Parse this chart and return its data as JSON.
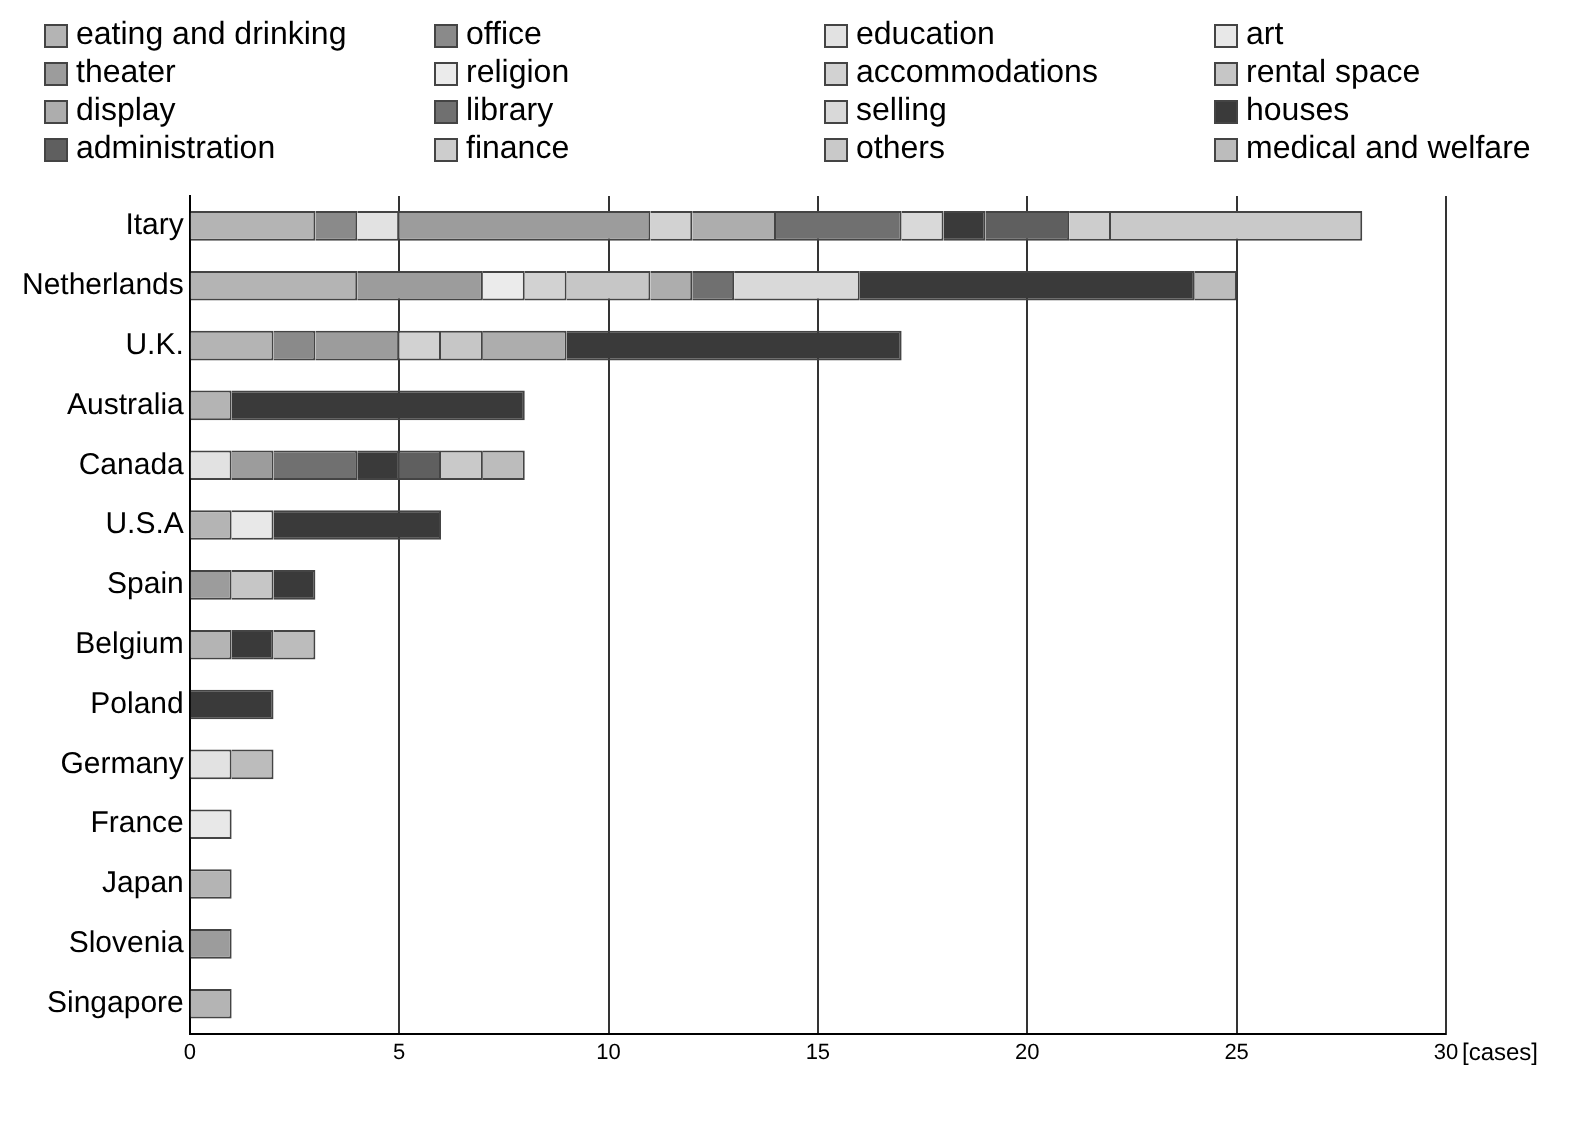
{
  "chart_data": {
    "type": "bar",
    "orientation": "horizontal",
    "stacked": true,
    "xlabel": "[cases]",
    "legend": "top",
    "grid": "x",
    "xlim": [
      0,
      30
    ],
    "xticks": [
      0,
      5,
      10,
      15,
      20,
      25,
      30
    ],
    "categories": [
      "Itary",
      "Netherlands",
      "U.K.",
      "Australia",
      "Canada",
      "U.S.A",
      "Spain",
      "Belgium",
      "Poland",
      "Germany",
      "France",
      "Japan",
      "Slovenia",
      "Singapore"
    ],
    "series": [
      {
        "name": "eating and drinking",
        "color": "#b4b4b4",
        "values": [
          3,
          4,
          2,
          1,
          null,
          1,
          null,
          1,
          null,
          null,
          null,
          1,
          null,
          1
        ]
      },
      {
        "name": "office",
        "color": "#8a8a8a",
        "values": [
          1,
          null,
          1,
          null,
          null,
          null,
          null,
          null,
          null,
          null,
          null,
          null,
          null,
          null
        ]
      },
      {
        "name": "education",
        "color": "#e2e2e2",
        "values": [
          1,
          null,
          null,
          null,
          1,
          null,
          null,
          null,
          null,
          1,
          null,
          null,
          null,
          null
        ]
      },
      {
        "name": "art",
        "color": "#e8e8e8",
        "values": [
          null,
          null,
          null,
          null,
          null,
          1,
          null,
          null,
          null,
          null,
          1,
          null,
          null,
          null
        ]
      },
      {
        "name": "theater",
        "color": "#9c9c9c",
        "values": [
          6,
          3,
          2,
          null,
          1,
          null,
          1,
          null,
          null,
          null,
          null,
          null,
          1,
          null
        ]
      },
      {
        "name": "religion",
        "color": "#ebebeb",
        "values": [
          null,
          1,
          null,
          null,
          null,
          null,
          null,
          null,
          null,
          null,
          null,
          null,
          null,
          null
        ]
      },
      {
        "name": "accommodations",
        "color": "#d2d2d2",
        "values": [
          1,
          1,
          1,
          null,
          null,
          null,
          null,
          null,
          null,
          null,
          null,
          null,
          null,
          null
        ]
      },
      {
        "name": "rental space",
        "color": "#c6c6c6",
        "values": [
          null,
          2,
          1,
          null,
          null,
          null,
          1,
          null,
          null,
          null,
          null,
          null,
          null,
          null
        ]
      },
      {
        "name": "display",
        "color": "#adadad",
        "values": [
          2,
          1,
          2,
          null,
          null,
          null,
          null,
          null,
          null,
          null,
          null,
          null,
          null,
          null
        ]
      },
      {
        "name": "library",
        "color": "#707070",
        "values": [
          3,
          1,
          null,
          null,
          2,
          null,
          null,
          null,
          null,
          null,
          null,
          null,
          null,
          null
        ]
      },
      {
        "name": "selling",
        "color": "#d9d9d9",
        "values": [
          1,
          3,
          null,
          null,
          null,
          null,
          null,
          null,
          null,
          null,
          null,
          null,
          null,
          null
        ]
      },
      {
        "name": "houses",
        "color": "#3a3a3a",
        "values": [
          1,
          8,
          8,
          7,
          1,
          4,
          1,
          1,
          2,
          null,
          null,
          null,
          null,
          null
        ]
      },
      {
        "name": "administration",
        "color": "#5f5f5f",
        "values": [
          2,
          null,
          null,
          null,
          1,
          null,
          null,
          null,
          null,
          null,
          null,
          null,
          null,
          null
        ]
      },
      {
        "name": "finance",
        "color": "#cdcdcd",
        "values": [
          1,
          null,
          null,
          null,
          null,
          null,
          null,
          null,
          null,
          null,
          null,
          null,
          null,
          null
        ]
      },
      {
        "name": "others",
        "color": "#c9c9c9",
        "values": [
          6,
          null,
          null,
          null,
          1,
          null,
          null,
          null,
          null,
          null,
          null,
          null,
          null,
          null
        ]
      },
      {
        "name": "medical and welfare",
        "color": "#bcbcbc",
        "values": [
          null,
          1,
          null,
          null,
          1,
          null,
          null,
          1,
          null,
          1,
          null,
          null,
          null,
          null
        ]
      }
    ]
  }
}
